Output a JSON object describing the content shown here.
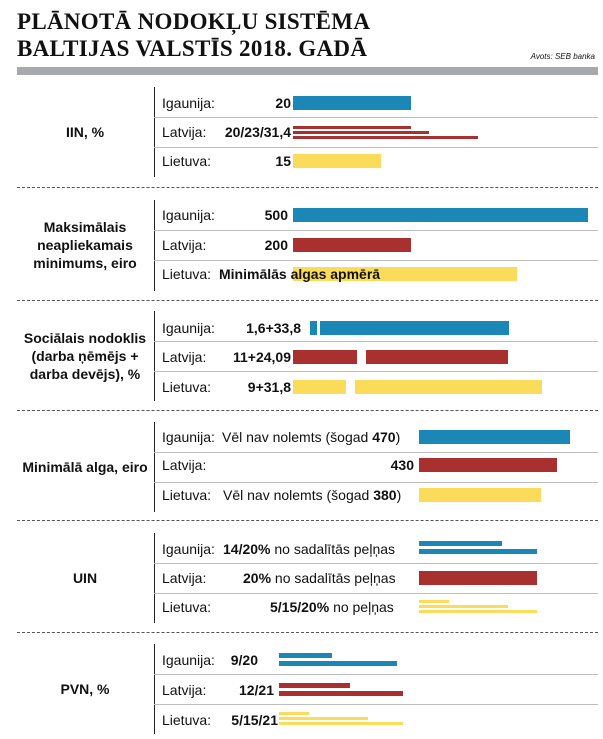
{
  "header": {
    "title_line1": "PLĀNOTĀ NODOKĻU SISTĒMA",
    "title_line2": "BALTIJAS VALSTĪS 2018. GADĀ",
    "source": "Avots: SEB banka"
  },
  "countries": {
    "ee": "Igaunija:",
    "lv": "Latvija:",
    "lt": "Lietuva:"
  },
  "colors": {
    "ee": "#1a87b6",
    "lv": "#a8312f",
    "lt": "#fbdc5a",
    "rule": "#a7a9ac"
  },
  "chart_data": {
    "type": "bar",
    "title": "PLĀNOTĀ NODOKĻU SISTĒMA BALTIJAS VALSTĪS 2018. GADĀ",
    "series_names": [
      "Igaunija",
      "Latvija",
      "Lietuva"
    ],
    "sections": [
      {
        "label": "IIN, %",
        "rows": [
          {
            "value_label": "20",
            "note": "",
            "values": [
              20
            ]
          },
          {
            "value_label": "20/23/31,4",
            "note": "",
            "values": [
              20,
              23,
              31.4
            ]
          },
          {
            "value_label": "15",
            "note": "",
            "values": [
              15
            ]
          }
        ]
      },
      {
        "label": "Maksimālais neapliekamais minimums, eiro",
        "rows": [
          {
            "value_label": "500",
            "note": "",
            "values": [
              500
            ]
          },
          {
            "value_label": "200",
            "note": "",
            "values": [
              200
            ]
          },
          {
            "value_label": "Minimālās algas apmērā",
            "note": "",
            "values": []
          }
        ]
      },
      {
        "label": "Sociālais nodoklis (darba ņēmējs + darba devējs), %",
        "rows": [
          {
            "value_label": "1,6+33,8",
            "note": "",
            "values": [
              1.6,
              33.8
            ]
          },
          {
            "value_label": "11+24,09",
            "note": "",
            "values": [
              11,
              24.09
            ]
          },
          {
            "value_label": "9+31,8",
            "note": "",
            "values": [
              9,
              31.8
            ]
          }
        ]
      },
      {
        "label": "Minimālā alga, eiro",
        "rows": [
          {
            "value_label": "",
            "note_pre": "Vēl nav nolemts (šogad ",
            "note_bold": "470",
            "note_post": ")",
            "values": [
              470
            ]
          },
          {
            "value_label": "430",
            "note": "",
            "values": [
              430
            ]
          },
          {
            "value_label": "",
            "note_pre": "Vēl nav nolemts (šogad ",
            "note_bold": "380",
            "note_post": ")",
            "values": [
              380
            ]
          }
        ]
      },
      {
        "label": "UIN",
        "rows": [
          {
            "value_label": "14/20%",
            "note": "no sadalītās peļņas",
            "values": [
              14,
              20
            ]
          },
          {
            "value_label": "20%",
            "note": "no sadalītās peļņas",
            "values": [
              20
            ]
          },
          {
            "value_label": "5/15/20%",
            "note": "no peļņas",
            "values": [
              5,
              15,
              20
            ]
          }
        ]
      },
      {
        "label": "PVN, %",
        "rows": [
          {
            "value_label": "9/20",
            "note": "",
            "values": [
              9,
              20
            ]
          },
          {
            "value_label": "12/21",
            "note": "",
            "values": [
              12,
              21
            ]
          },
          {
            "value_label": "5/15/21",
            "note": "",
            "values": [
              5,
              15,
              21
            ]
          }
        ]
      }
    ]
  }
}
